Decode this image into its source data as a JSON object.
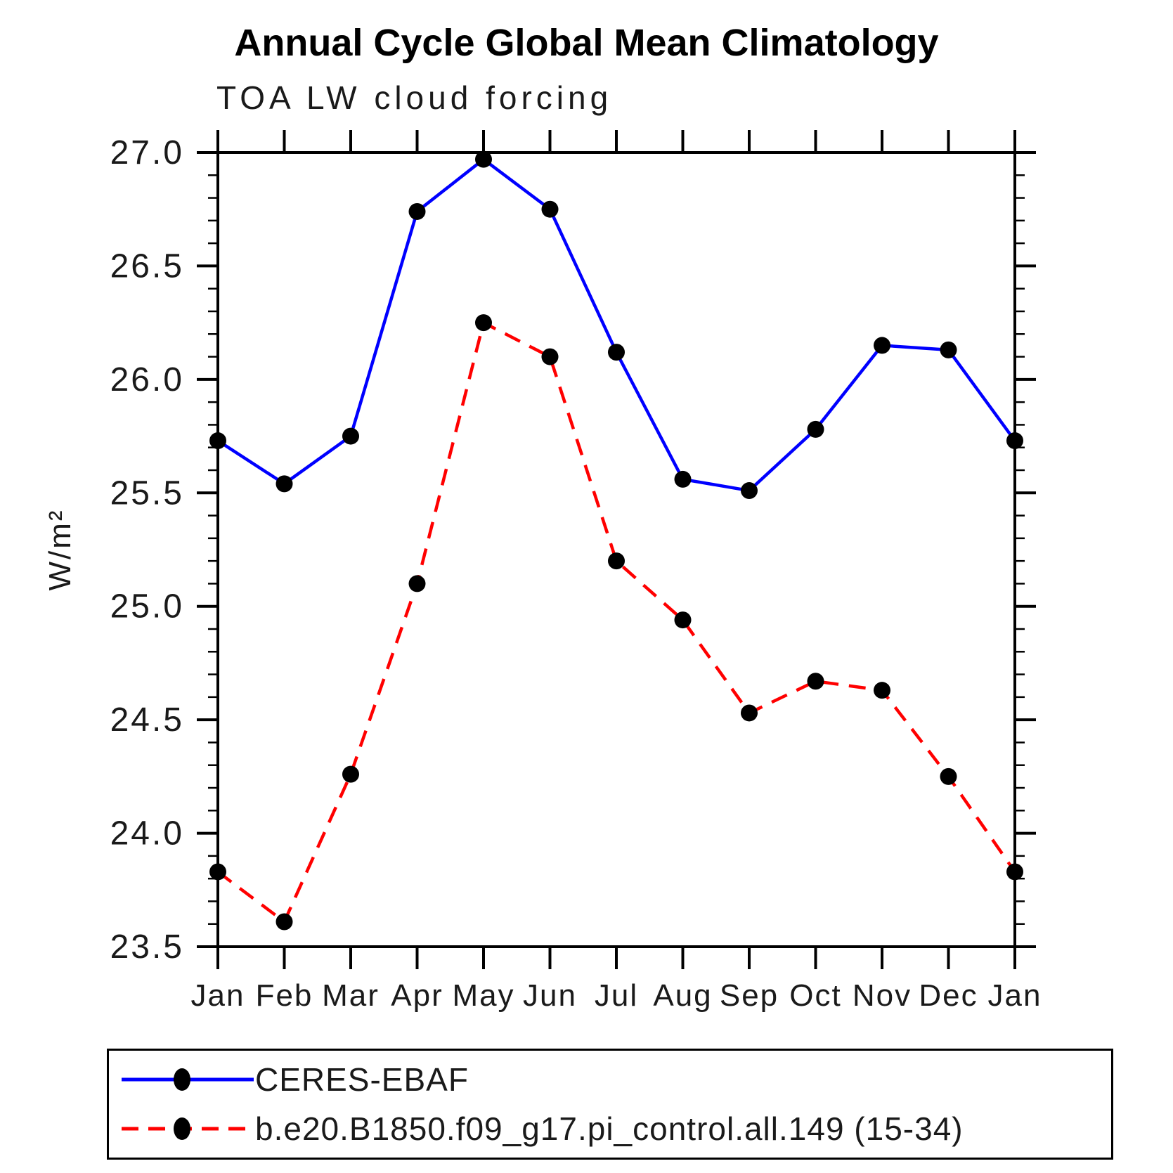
{
  "header": {
    "title": "Annual Cycle Global Mean Climatology",
    "subtitle": "TOA LW cloud forcing"
  },
  "chart_data": {
    "type": "line",
    "title": "Annual Cycle Global Mean Climatology",
    "subtitle": "TOA LW cloud forcing",
    "xlabel": "",
    "ylabel": "W/m²",
    "categories": [
      "Jan",
      "Feb",
      "Mar",
      "Apr",
      "May",
      "Jun",
      "Jul",
      "Aug",
      "Sep",
      "Oct",
      "Nov",
      "Dec",
      "Jan"
    ],
    "ylim": [
      23.5,
      27.0
    ],
    "ytick_major_step": 0.5,
    "ytick_minor_step": 0.1,
    "ytick_labels": [
      "27.0",
      "26.5",
      "26.0",
      "25.5",
      "25.0",
      "24.5",
      "24.0",
      "23.5"
    ],
    "grid": false,
    "legend_position": "bottom",
    "series": [
      {
        "name": "CERES-EBAF",
        "color": "#0000ff",
        "line_style": "solid",
        "marker": "circle",
        "marker_color": "#000000",
        "values": [
          25.73,
          25.54,
          25.75,
          26.74,
          26.97,
          26.75,
          26.12,
          25.56,
          25.51,
          25.78,
          26.15,
          26.13,
          25.73
        ]
      },
      {
        "name": "b.e20.B1850.f09_g17.pi_control.all.149 (15-34)",
        "color": "#ff0000",
        "line_style": "dashed",
        "marker": "circle",
        "marker_color": "#000000",
        "values": [
          23.83,
          23.61,
          24.26,
          25.1,
          26.25,
          26.1,
          25.2,
          24.94,
          24.53,
          24.67,
          24.63,
          24.25,
          23.83
        ]
      }
    ]
  },
  "colors": {
    "frame": "#000000",
    "text": "#1a1a1a",
    "background": "#ffffff"
  }
}
